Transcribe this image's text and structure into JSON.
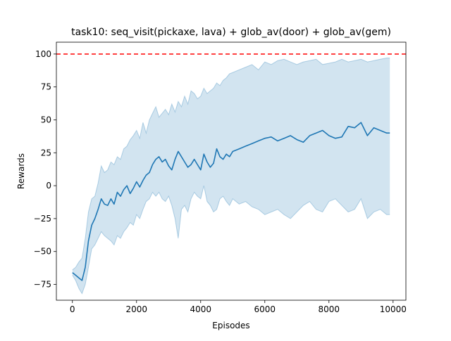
{
  "chart_data": {
    "type": "line",
    "title": "task10: seq_visit(pickaxe, lava) + glob_av(door) + glob_av(gem)",
    "xlabel": "Episodes",
    "ylabel": "Rewards",
    "xlim": [
      -500,
      10400
    ],
    "ylim": [
      -87,
      109
    ],
    "xticks": [
      0,
      2000,
      4000,
      6000,
      8000,
      10000
    ],
    "xtick_labels": [
      "0",
      "2000",
      "4000",
      "6000",
      "8000",
      "10000"
    ],
    "yticks": [
      -75,
      -50,
      -25,
      0,
      25,
      50,
      75,
      100
    ],
    "ytick_labels": [
      "−75",
      "−50",
      "−25",
      "0",
      "25",
      "50",
      "75",
      "100"
    ],
    "grid": false,
    "colors": {
      "mean": "#1f77b4",
      "band_fill": "#1f77b4",
      "reference": "#ff0000"
    },
    "reference_line": {
      "y": 100,
      "style": "dashed"
    },
    "series": [
      {
        "x": [
          0,
          100,
          200,
          300,
          400,
          500,
          600,
          700,
          800,
          900,
          1000,
          1100,
          1200,
          1300,
          1400,
          1500,
          1600,
          1700,
          1800,
          1900,
          2000,
          2100,
          2200,
          2300,
          2400,
          2500,
          2600,
          2700,
          2800,
          2900,
          3000,
          3100,
          3200,
          3300,
          3400,
          3500,
          3600,
          3700,
          3800,
          3900,
          4000,
          4100,
          4200,
          4300,
          4400,
          4500,
          4600,
          4700,
          4800,
          4900,
          5000,
          5200,
          5400,
          5600,
          5800,
          6000,
          6200,
          6400,
          6600,
          6800,
          7000,
          7200,
          7400,
          7600,
          7800,
          8000,
          8200,
          8400,
          8600,
          8800,
          9000,
          9200,
          9400,
          9600,
          9800,
          9900
        ],
        "mean": [
          -66,
          -68,
          -70,
          -72,
          -62,
          -42,
          -30,
          -25,
          -18,
          -10,
          -14,
          -15,
          -10,
          -14,
          -5,
          -8,
          -3,
          0,
          -6,
          -2,
          3,
          -1,
          4,
          8,
          10,
          16,
          20,
          22,
          18,
          20,
          15,
          12,
          20,
          26,
          22,
          18,
          14,
          16,
          20,
          16,
          12,
          24,
          18,
          14,
          17,
          28,
          22,
          20,
          24,
          22,
          26,
          28,
          30,
          32,
          34,
          36,
          37,
          34,
          36,
          38,
          35,
          33,
          38,
          40,
          42,
          38,
          36,
          37,
          45,
          44,
          48,
          38,
          44,
          42,
          40,
          40
        ],
        "lower": [
          -68,
          -72,
          -78,
          -82,
          -75,
          -62,
          -48,
          -45,
          -40,
          -35,
          -38,
          -40,
          -42,
          -45,
          -38,
          -40,
          -35,
          -32,
          -28,
          -30,
          -22,
          -25,
          -18,
          -12,
          -10,
          -5,
          -8,
          -5,
          -10,
          -12,
          -8,
          -15,
          -25,
          -40,
          -18,
          -15,
          -20,
          -10,
          -5,
          -8,
          -10,
          0,
          -12,
          -15,
          -20,
          -18,
          -10,
          -8,
          -12,
          -15,
          -10,
          -14,
          -12,
          -16,
          -18,
          -22,
          -20,
          -18,
          -22,
          -25,
          -20,
          -15,
          -12,
          -18,
          -20,
          -12,
          -10,
          -15,
          -20,
          -18,
          -10,
          -25,
          -20,
          -18,
          -22,
          -22
        ],
        "upper": [
          -64,
          -62,
          -58,
          -55,
          -40,
          -20,
          -10,
          -8,
          2,
          15,
          10,
          12,
          18,
          16,
          22,
          20,
          28,
          30,
          35,
          38,
          42,
          36,
          48,
          40,
          50,
          55,
          60,
          52,
          55,
          58,
          54,
          62,
          56,
          64,
          60,
          68,
          62,
          72,
          70,
          66,
          68,
          74,
          70,
          72,
          74,
          78,
          76,
          80,
          82,
          85,
          86,
          88,
          90,
          92,
          88,
          94,
          92,
          95,
          96,
          94,
          92,
          94,
          95,
          96,
          92,
          93,
          94,
          96,
          94,
          95,
          96,
          94,
          95,
          96,
          97,
          97
        ]
      }
    ]
  }
}
